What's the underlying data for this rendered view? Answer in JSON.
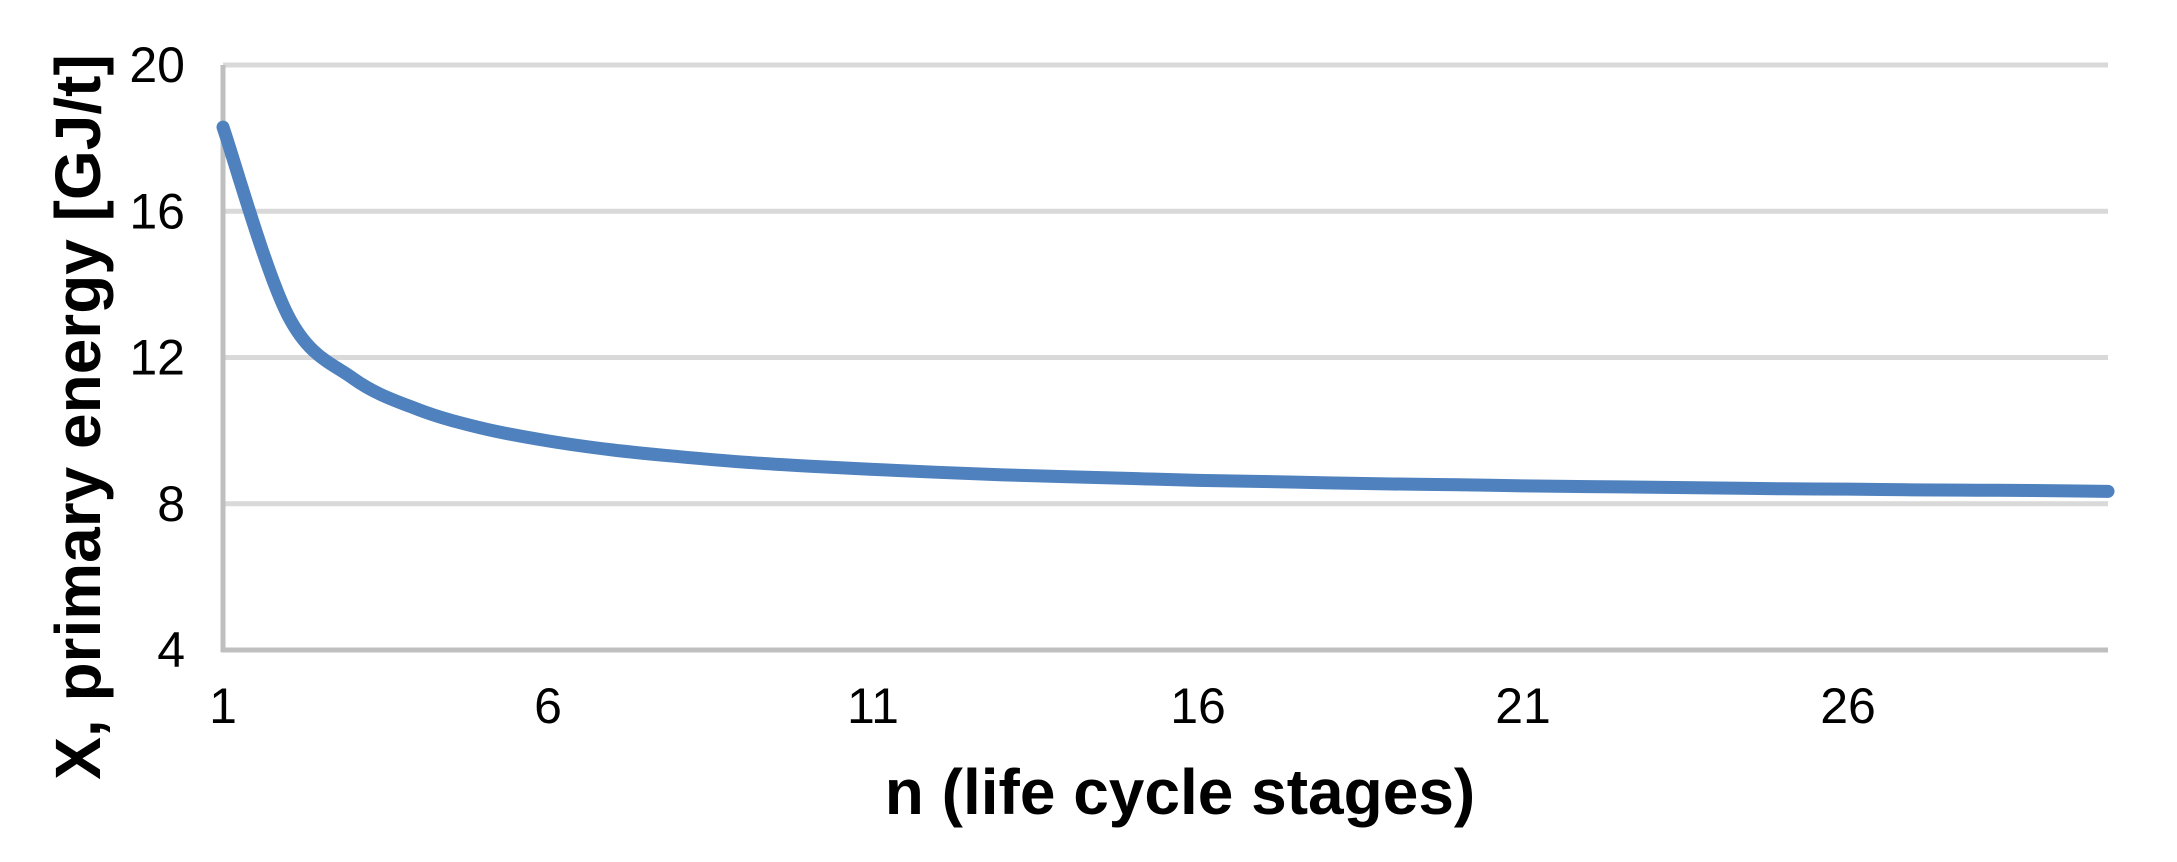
{
  "chart_data": {
    "type": "line",
    "title": "",
    "xlabel": "n (life cycle stages)",
    "ylabel": "X, primary energy [GJ/t]",
    "x": [
      1,
      2,
      3,
      4,
      5,
      6,
      7,
      8,
      9,
      10,
      11,
      12,
      13,
      14,
      15,
      16,
      17,
      18,
      19,
      20,
      21,
      22,
      23,
      24,
      25,
      26,
      27,
      28,
      29,
      30
    ],
    "series": [
      {
        "name": "X, primary energy",
        "values": [
          18.3,
          13.15,
          11.43,
          10.58,
          10.06,
          9.72,
          9.47,
          9.29,
          9.14,
          9.03,
          8.94,
          8.86,
          8.79,
          8.74,
          8.69,
          8.64,
          8.61,
          8.57,
          8.54,
          8.52,
          8.49,
          8.47,
          8.45,
          8.43,
          8.41,
          8.4,
          8.38,
          8.37,
          8.36,
          8.34
        ]
      }
    ],
    "xlim": [
      1,
      30
    ],
    "ylim": [
      4,
      20
    ],
    "x_ticks": [
      "1",
      "6",
      "11",
      "16",
      "21",
      "26"
    ],
    "x_tick_values": [
      1,
      6,
      11,
      16,
      21,
      26
    ],
    "y_ticks": [
      "4",
      "8",
      "12",
      "16",
      "20"
    ],
    "y_tick_values": [
      4,
      8,
      12,
      16,
      20
    ],
    "grid": "horizontal",
    "legend": "none",
    "line_smooth": true,
    "colors": {
      "line": "#4E81BD",
      "gridline": "#D9D9D9",
      "axis": "#BFBFBF",
      "text": "#000000",
      "background": "#FFFFFF"
    }
  }
}
